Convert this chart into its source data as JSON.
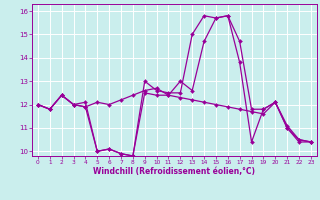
{
  "title": "",
  "xlabel": "Windchill (Refroidissement éolien,°C)",
  "ylabel": "",
  "xlim": [
    -0.5,
    23.5
  ],
  "ylim": [
    9.8,
    16.3
  ],
  "xticks": [
    0,
    1,
    2,
    3,
    4,
    5,
    6,
    7,
    8,
    9,
    10,
    11,
    12,
    13,
    14,
    15,
    16,
    17,
    18,
    19,
    20,
    21,
    22,
    23
  ],
  "yticks": [
    10,
    11,
    12,
    13,
    14,
    15,
    16
  ],
  "background_color": "#caeeed",
  "line_color": "#990099",
  "grid_color": "#aadddd",
  "series": [
    [
      12.0,
      11.8,
      12.4,
      12.0,
      11.9,
      12.1,
      12.0,
      12.2,
      12.4,
      12.6,
      12.7,
      12.4,
      12.3,
      12.2,
      12.1,
      12.0,
      11.9,
      11.8,
      11.7,
      11.6,
      12.1,
      11.1,
      10.5,
      10.4
    ],
    [
      12.0,
      11.8,
      12.4,
      12.0,
      11.9,
      10.0,
      10.1,
      9.9,
      9.8,
      12.5,
      12.4,
      12.4,
      13.0,
      12.6,
      14.7,
      15.7,
      15.8,
      13.8,
      10.4,
      11.8,
      12.1,
      11.0,
      10.4,
      10.4
    ],
    [
      12.0,
      11.8,
      12.4,
      12.0,
      12.1,
      10.0,
      10.1,
      9.9,
      9.8,
      13.0,
      12.6,
      12.5,
      12.5,
      15.0,
      15.8,
      15.7,
      15.8,
      14.7,
      11.8,
      11.8,
      12.1,
      11.0,
      10.5,
      10.4
    ]
  ],
  "xtick_fontsize": 4.2,
  "ytick_fontsize": 5.0,
  "xlabel_fontsize": 5.5,
  "linewidth": 0.9,
  "markersize": 2.0
}
